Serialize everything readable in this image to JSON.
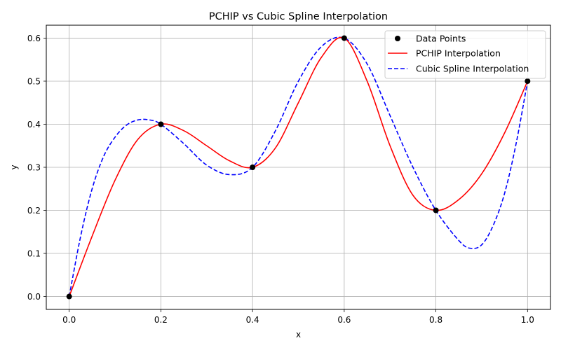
{
  "chart_data": {
    "type": "line",
    "title": "PCHIP vs Cubic Spline Interpolation",
    "xlabel": "x",
    "ylabel": "y",
    "xlim": [
      -0.05,
      1.05
    ],
    "ylim": [
      -0.03,
      0.63
    ],
    "grid": true,
    "legend_position": "top-right",
    "x_ticks": [
      0.0,
      0.2,
      0.4,
      0.6,
      0.8,
      1.0
    ],
    "x_tick_labels": [
      "0.0",
      "0.2",
      "0.4",
      "0.6",
      "0.8",
      "1.0"
    ],
    "y_ticks": [
      0.0,
      0.1,
      0.2,
      0.3,
      0.4,
      0.5,
      0.6
    ],
    "y_tick_labels": [
      "0.0",
      "0.1",
      "0.2",
      "0.3",
      "0.4",
      "0.5",
      "0.6"
    ],
    "x": [
      0.0,
      0.2,
      0.4,
      0.6,
      0.8,
      1.0
    ],
    "series": [
      {
        "name": "Data Points",
        "kind": "markers",
        "color": "#000000",
        "x": [
          0.0,
          0.2,
          0.4,
          0.6,
          0.8,
          1.0
        ],
        "values": [
          0.0,
          0.4,
          0.3,
          0.6,
          0.2,
          0.5
        ]
      },
      {
        "name": "PCHIP Interpolation",
        "kind": "solid-line",
        "color": "#ff0000",
        "x": [
          0.0,
          0.05,
          0.1,
          0.15,
          0.2,
          0.25,
          0.3,
          0.35,
          0.4,
          0.45,
          0.5,
          0.55,
          0.6,
          0.65,
          0.7,
          0.75,
          0.8,
          0.85,
          0.9,
          0.95,
          1.0
        ],
        "values": [
          0.0,
          0.14,
          0.27,
          0.365,
          0.4,
          0.385,
          0.35,
          0.315,
          0.3,
          0.345,
          0.45,
          0.555,
          0.6,
          0.5,
          0.35,
          0.235,
          0.2,
          0.225,
          0.285,
          0.38,
          0.5
        ]
      },
      {
        "name": "Cubic Spline Interpolation",
        "kind": "dashed-line",
        "color": "#0000ff",
        "x": [
          0.0,
          0.025,
          0.05,
          0.075,
          0.1,
          0.125,
          0.15,
          0.175,
          0.2,
          0.25,
          0.3,
          0.35,
          0.4,
          0.45,
          0.5,
          0.55,
          0.6,
          0.65,
          0.7,
          0.75,
          0.8,
          0.85,
          0.875,
          0.9,
          0.925,
          0.95,
          0.975,
          1.0
        ],
        "values": [
          0.0,
          0.14,
          0.25,
          0.325,
          0.37,
          0.398,
          0.41,
          0.41,
          0.4,
          0.355,
          0.305,
          0.283,
          0.3,
          0.385,
          0.5,
          0.58,
          0.6,
          0.54,
          0.42,
          0.3,
          0.2,
          0.13,
          0.112,
          0.12,
          0.165,
          0.24,
          0.355,
          0.5
        ]
      }
    ]
  }
}
